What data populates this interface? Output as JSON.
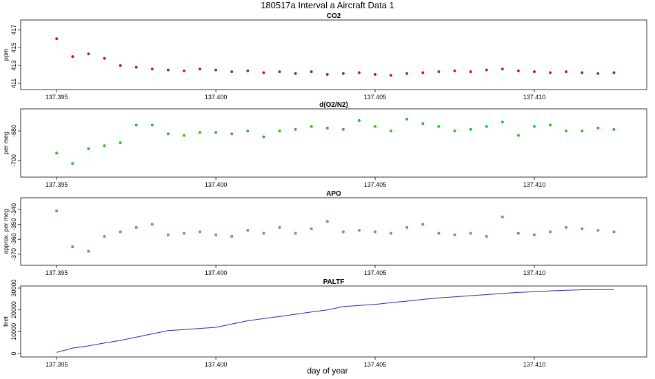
{
  "title": "180517a   Interval a Aircraft Data 1",
  "x_label": "day of year",
  "chart_data": [
    {
      "type": "scatter",
      "title": "CO2",
      "y_label": "ppm",
      "color": "#ee0000",
      "x": [
        137.395,
        137.3955,
        137.396,
        137.3965,
        137.397,
        137.3975,
        137.398,
        137.3985,
        137.399,
        137.3995,
        137.4,
        137.4005,
        137.401,
        137.4015,
        137.402,
        137.4025,
        137.403,
        137.4035,
        137.404,
        137.4045,
        137.405,
        137.4055,
        137.406,
        137.4065,
        137.407,
        137.4075,
        137.408,
        137.4085,
        137.409,
        137.4095,
        137.41,
        137.4105,
        137.411,
        137.4115,
        137.412,
        137.4125
      ],
      "values": [
        416.0,
        414.0,
        414.3,
        413.8,
        413.0,
        412.8,
        412.6,
        412.5,
        412.4,
        412.6,
        412.5,
        412.3,
        412.4,
        412.2,
        412.3,
        412.1,
        412.3,
        412.0,
        412.1,
        412.2,
        412.0,
        411.9,
        412.1,
        412.2,
        412.3,
        412.4,
        412.3,
        412.5,
        412.6,
        412.4,
        412.3,
        412.2,
        412.3,
        412.2,
        412.1,
        412.2
      ],
      "xlim": [
        137.39387,
        137.41353
      ],
      "ylim": [
        410.3,
        418.1
      ],
      "xticks": [
        137.395,
        {
          "value": 137.4,
          "label": "137.400"
        },
        137.405,
        {
          "value": 137.41,
          "label": "137.410"
        }
      ],
      "yticks": [
        411,
        413,
        415,
        417
      ]
    },
    {
      "type": "scatter",
      "title": "d(O2/N2)",
      "y_label": "per meg",
      "color": "#00ee00",
      "x": [
        137.395,
        137.3955,
        137.396,
        137.3965,
        137.397,
        137.3975,
        137.398,
        137.3985,
        137.399,
        137.3995,
        137.4,
        137.4005,
        137.401,
        137.4015,
        137.402,
        137.4025,
        137.403,
        137.4035,
        137.404,
        137.4045,
        137.405,
        137.4055,
        137.406,
        137.4065,
        137.407,
        137.4075,
        137.408,
        137.4085,
        137.409,
        137.4095,
        137.41,
        137.4105,
        137.411,
        137.4115,
        137.412,
        137.4125
      ],
      "values": [
        -695,
        -702,
        -692,
        -690,
        -688,
        -676,
        -676,
        -682,
        -683,
        -681,
        -681,
        -682,
        -680,
        -684,
        -680,
        -679,
        -677,
        -678,
        -679,
        -673,
        -677,
        -680,
        -672,
        -675,
        -677,
        -680,
        -679,
        -677,
        -674,
        -683,
        -677,
        -676,
        -680,
        -680,
        -678,
        -679
      ],
      "xlim": [
        137.39387,
        137.41353
      ],
      "ylim": [
        -711.2,
        -665.1
      ],
      "xticks": [
        137.395,
        {
          "value": 137.4,
          "label": "137.400"
        },
        137.405,
        {
          "value": 137.41,
          "label": "137.410"
        }
      ],
      "yticks": [
        -700,
        -680
      ]
    },
    {
      "type": "scatter",
      "title": "APO",
      "y_label": "approx. per meg",
      "color": "#dd66ee",
      "x": [
        137.395,
        137.3955,
        137.396,
        137.3965,
        137.397,
        137.3975,
        137.398,
        137.3985,
        137.399,
        137.3995,
        137.4,
        137.4005,
        137.401,
        137.4015,
        137.402,
        137.4025,
        137.403,
        137.4035,
        137.404,
        137.4045,
        137.405,
        137.4055,
        137.406,
        137.4065,
        137.407,
        137.4075,
        137.408,
        137.4085,
        137.409,
        137.4095,
        137.41,
        137.4105,
        137.411,
        137.4115,
        137.412,
        137.4125
      ],
      "values": [
        -341,
        -365,
        -368,
        -358,
        -355,
        -352,
        -350,
        -357,
        -356,
        -355,
        -357,
        -358,
        -354,
        -356,
        -352,
        -356,
        -353,
        -348,
        -355,
        -354,
        -355,
        -356,
        -352,
        -350,
        -356,
        -357,
        -356,
        -358,
        -345,
        -356,
        -357,
        -355,
        -352,
        -353,
        -354,
        -355
      ],
      "xlim": [
        137.39387,
        137.41353
      ],
      "ylim": [
        -377.4,
        -332.2
      ],
      "xticks": [
        137.395,
        {
          "value": 137.4,
          "label": "137.400"
        },
        137.405,
        {
          "value": 137.41,
          "label": "137.410"
        }
      ],
      "yticks": [
        -370,
        -360,
        -350,
        -340
      ]
    },
    {
      "type": "line",
      "title": "PALTF",
      "y_label": "feet",
      "color": "#2222cc",
      "x": [
        137.395,
        137.3955,
        137.396,
        137.3965,
        137.397,
        137.3975,
        137.398,
        137.3985,
        137.399,
        137.3995,
        137.4,
        137.4005,
        137.401,
        137.4015,
        137.402,
        137.4025,
        137.403,
        137.4035,
        137.404,
        137.4045,
        137.405,
        137.4055,
        137.406,
        137.4065,
        137.407,
        137.4075,
        137.408,
        137.4085,
        137.409,
        137.4095,
        137.41,
        137.4105,
        137.411,
        137.4115,
        137.412,
        137.4125
      ],
      "values": [
        500,
        2500,
        3500,
        4800,
        6000,
        7500,
        9000,
        10500,
        11000,
        11500,
        12000,
        13500,
        15000,
        16000,
        17000,
        18000,
        19000,
        20000,
        21500,
        22000,
        22500,
        23300,
        24000,
        24800,
        25500,
        26000,
        26500,
        27000,
        27500,
        28000,
        28300,
        28700,
        29000,
        29200,
        29300,
        29300
      ],
      "xlim": [
        137.39387,
        137.41353
      ],
      "ylim": [
        -1580,
        30950
      ],
      "xticks": [
        137.395,
        {
          "value": 137.4,
          "label": "137.400"
        },
        137.405,
        {
          "value": 137.41,
          "label": "137.410"
        }
      ],
      "yticks": [
        0,
        10000,
        20000,
        30000
      ]
    }
  ]
}
